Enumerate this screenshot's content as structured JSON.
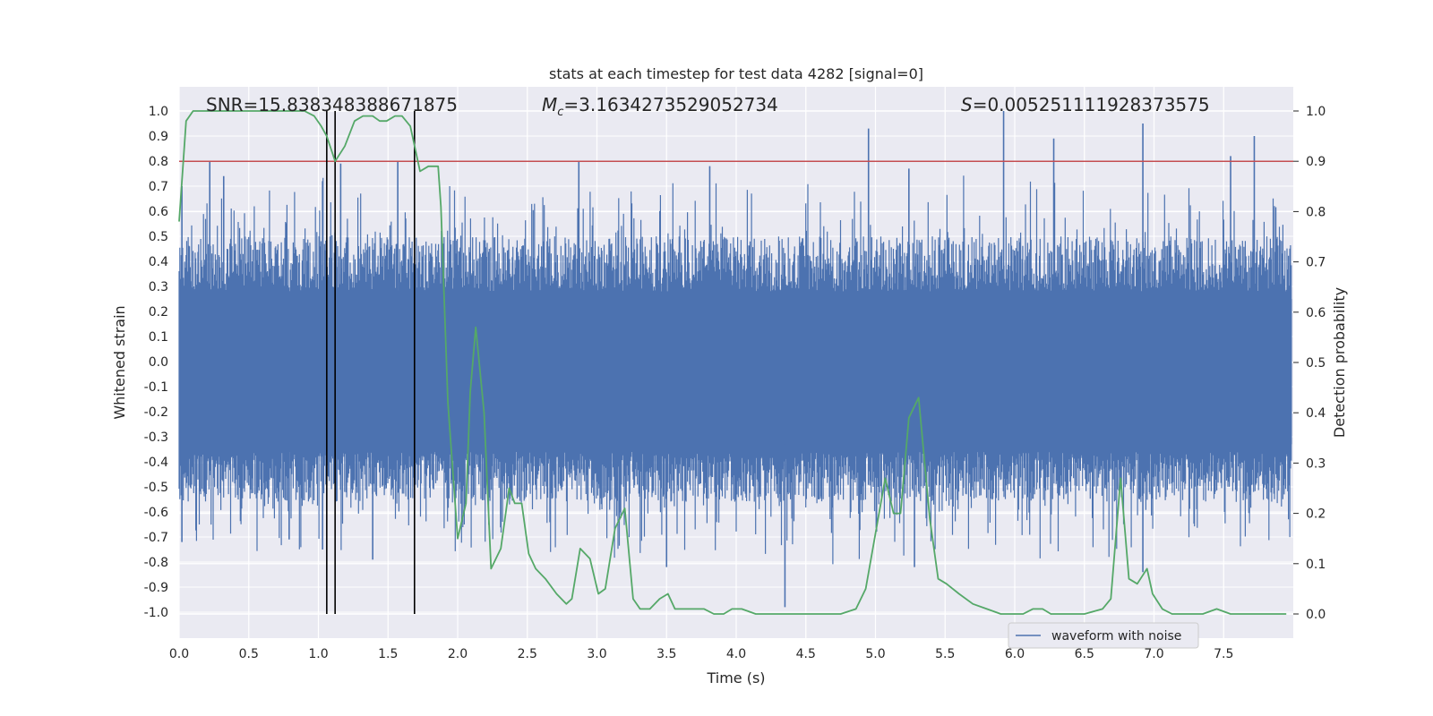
{
  "chart_data": {
    "type": "line",
    "title": "stats at each timestep for test data 4282 [signal=0]",
    "xlabel": "Time (s)",
    "ylabel_left": "Whitened strain",
    "ylabel_right": "Detection probability",
    "xlim": [
      0.0,
      7.99
    ],
    "ylim_left": [
      -1.1,
      1.1
    ],
    "ylim_right": [
      -0.05,
      1.05
    ],
    "grid": true,
    "xticks": [
      "0.0",
      "0.5",
      "1.0",
      "1.5",
      "2.0",
      "2.5",
      "3.0",
      "3.5",
      "4.0",
      "4.5",
      "5.0",
      "5.5",
      "6.0",
      "6.5",
      "7.0",
      "7.5"
    ],
    "yticks_left": [
      "1.0",
      "0.9",
      "0.8",
      "0.7",
      "0.6",
      "0.5",
      "0.4",
      "0.3",
      "0.2",
      "0.1",
      "0.0",
      "-0.1",
      "-0.2",
      "-0.3",
      "-0.4",
      "-0.5",
      "-0.6",
      "-0.7",
      "-0.8",
      "-0.9",
      "-1.0"
    ],
    "yticks_right": [
      "1.0",
      "0.9",
      "0.8",
      "0.7",
      "0.6",
      "0.5",
      "0.4",
      "0.3",
      "0.2",
      "0.1",
      "0.0"
    ],
    "annotations": {
      "snr_text": "SNR=15.838348388671875",
      "mc_symbol": "M",
      "mc_subscript": "c",
      "mc_value": "=3.1634273529052734",
      "s_symbol": "S",
      "s_value": "=0.005251111928373575"
    },
    "threshold": {
      "value": 0.9,
      "axis": "right",
      "color": "#c44e52"
    },
    "vertical_markers": [
      1.06,
      1.12,
      1.69
    ],
    "waveform": {
      "name": "waveform with noise",
      "color": "#4c72b0",
      "description_range": [
        -1.0,
        1.0
      ],
      "spikes": [
        {
          "t": 0.02,
          "v": 0.7
        },
        {
          "t": 0.22,
          "v": 0.8
        },
        {
          "t": 0.32,
          "v": 0.74
        },
        {
          "t": 1.03,
          "v": 0.72
        },
        {
          "t": 1.16,
          "v": 0.79
        },
        {
          "t": 1.57,
          "v": 0.8
        },
        {
          "t": 2.87,
          "v": 0.8
        },
        {
          "t": 3.81,
          "v": 0.78
        },
        {
          "t": 4.95,
          "v": 0.93
        },
        {
          "t": 5.24,
          "v": 0.77
        },
        {
          "t": 5.92,
          "v": 1.0
        },
        {
          "t": 6.28,
          "v": 0.89
        },
        {
          "t": 6.92,
          "v": 0.95
        },
        {
          "t": 7.55,
          "v": 0.82
        },
        {
          "t": 7.72,
          "v": 0.9
        },
        {
          "t": 4.35,
          "v": -0.98
        },
        {
          "t": 3.5,
          "v": -0.82
        },
        {
          "t": 6.92,
          "v": -0.84
        },
        {
          "t": 0.02,
          "v": -0.72
        },
        {
          "t": 1.39,
          "v": -0.79
        },
        {
          "t": 5.28,
          "v": -0.82
        },
        {
          "t": 0.79,
          "v": -0.71
        },
        {
          "t": 1.03,
          "v": -0.75
        }
      ]
    },
    "detection_probability": {
      "color": "#55a868",
      "t": [
        0.0,
        0.05,
        0.1,
        0.2,
        0.3,
        0.5,
        0.7,
        0.9,
        0.97,
        1.02,
        1.06,
        1.12,
        1.19,
        1.26,
        1.32,
        1.39,
        1.44,
        1.49,
        1.55,
        1.6,
        1.66,
        1.73,
        1.79,
        1.86,
        1.88,
        1.93,
        2.0,
        2.06,
        2.09,
        2.13,
        2.19,
        2.24,
        2.31,
        2.37,
        2.41,
        2.46,
        2.51,
        2.56,
        2.63,
        2.71,
        2.78,
        2.82,
        2.88,
        2.95,
        3.01,
        3.06,
        3.13,
        3.2,
        3.26,
        3.31,
        3.38,
        3.45,
        3.51,
        3.56,
        3.63,
        3.7,
        3.77,
        3.84,
        3.91,
        3.97,
        4.04,
        4.14,
        4.35,
        4.55,
        4.75,
        4.86,
        4.93,
        5.0,
        5.07,
        5.13,
        5.18,
        5.24,
        5.31,
        5.39,
        5.45,
        5.51,
        5.6,
        5.7,
        5.8,
        5.9,
        6.06,
        6.13,
        6.2,
        6.26,
        6.34,
        6.5,
        6.63,
        6.69,
        6.76,
        6.82,
        6.88,
        6.95,
        6.99,
        7.06,
        7.13,
        7.21,
        7.35,
        7.45,
        7.55,
        7.65,
        7.85,
        7.95
      ],
      "p": [
        0.78,
        0.98,
        1.0,
        1.0,
        1.0,
        1.0,
        1.0,
        1.0,
        0.99,
        0.97,
        0.95,
        0.9,
        0.93,
        0.98,
        0.99,
        0.99,
        0.98,
        0.98,
        0.99,
        0.99,
        0.97,
        0.88,
        0.89,
        0.89,
        0.81,
        0.42,
        0.15,
        0.22,
        0.44,
        0.57,
        0.4,
        0.09,
        0.13,
        0.25,
        0.22,
        0.22,
        0.12,
        0.09,
        0.07,
        0.04,
        0.02,
        0.03,
        0.13,
        0.11,
        0.04,
        0.05,
        0.17,
        0.21,
        0.03,
        0.01,
        0.01,
        0.03,
        0.04,
        0.01,
        0.01,
        0.01,
        0.01,
        0.0,
        0.0,
        0.01,
        0.01,
        0.0,
        0.0,
        0.0,
        0.0,
        0.01,
        0.05,
        0.16,
        0.27,
        0.2,
        0.2,
        0.39,
        0.43,
        0.19,
        0.07,
        0.06,
        0.04,
        0.02,
        0.01,
        0.0,
        0.0,
        0.01,
        0.01,
        0.0,
        0.0,
        0.0,
        0.01,
        0.03,
        0.27,
        0.07,
        0.06,
        0.09,
        0.04,
        0.01,
        0.0,
        0.0,
        0.0,
        0.01,
        0.0,
        0.0,
        0.0,
        0.0
      ]
    }
  }
}
